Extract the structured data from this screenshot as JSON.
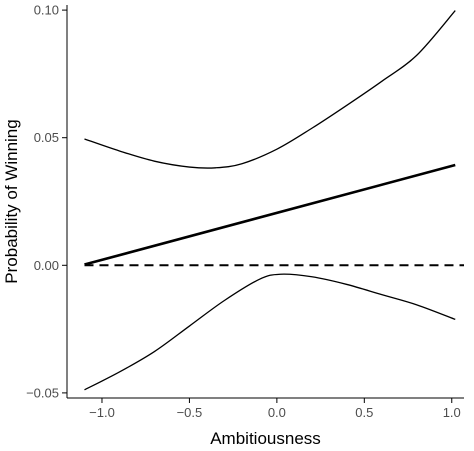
{
  "chart_data": {
    "type": "line",
    "title": "",
    "xlabel": "Ambitiousness",
    "ylabel": "Probability of Winning",
    "xlim": [
      -1.2,
      1.07
    ],
    "ylim": [
      -0.052,
      0.102
    ],
    "x_ticks": [
      -1.0,
      -0.5,
      0.0,
      0.5,
      1.0
    ],
    "x_tick_labels": [
      "−1.0",
      "−0.5",
      "0.0",
      "0.5",
      "1.0"
    ],
    "y_ticks": [
      -0.05,
      0.0,
      0.05,
      0.1
    ],
    "y_tick_labels": [
      "−0.05",
      "0.00",
      "0.05",
      "0.10"
    ],
    "reference_line": {
      "y": 0.0,
      "style": "dashed"
    },
    "grid": false,
    "series": [
      {
        "role": "estimate",
        "style": "solid-bold",
        "x": [
          -1.1,
          1.02
        ],
        "y": [
          0.0003,
          0.0393
        ]
      },
      {
        "role": "upper-bound",
        "style": "solid",
        "x": [
          -1.1,
          -0.9,
          -0.7,
          -0.5,
          -0.35,
          -0.2,
          0.0,
          0.2,
          0.4,
          0.6,
          0.8,
          1.02
        ],
        "y": [
          0.0495,
          0.0448,
          0.0408,
          0.0385,
          0.0382,
          0.0398,
          0.0455,
          0.0537,
          0.0627,
          0.0721,
          0.0823,
          0.0998
        ]
      },
      {
        "role": "lower-bound",
        "style": "solid",
        "x": [
          -1.1,
          -0.9,
          -0.7,
          -0.5,
          -0.3,
          -0.1,
          0.02,
          0.2,
          0.4,
          0.6,
          0.8,
          1.02
        ],
        "y": [
          -0.0488,
          -0.0418,
          -0.0338,
          -0.0238,
          -0.0138,
          -0.0055,
          -0.0035,
          -0.0045,
          -0.0075,
          -0.0115,
          -0.0155,
          -0.0212
        ]
      }
    ]
  },
  "colors": {
    "line": "#000000",
    "axis": "#000000",
    "tick_label": "#4d4d4d",
    "background": "#ffffff"
  }
}
